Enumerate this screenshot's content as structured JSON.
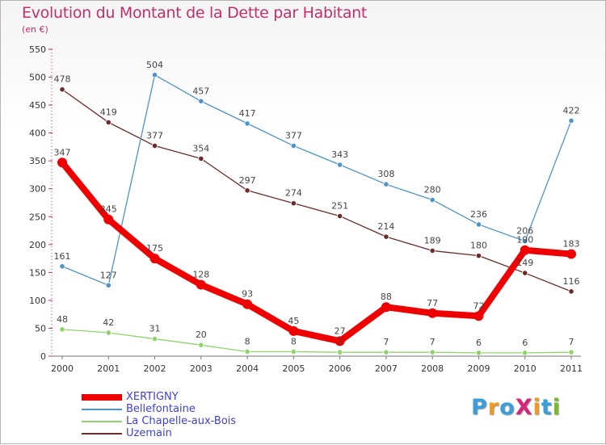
{
  "header": {
    "title": "Evolution du Montant de la Dette par Habitant",
    "unit": "(en €)"
  },
  "logo": {
    "text": "ProXiti",
    "letter_colors": [
      "#3a9fd8",
      "#f29a1f",
      "#3a9fd8",
      "#d6257b",
      "#f29a1f",
      "#3a9fd8",
      "#7ab929"
    ]
  },
  "chart_data": {
    "type": "line",
    "title": "Evolution du Montant de la Dette par Habitant",
    "ylabel": "(en €)",
    "xlabel": "",
    "ylim": [
      0,
      550
    ],
    "yticks": [
      0,
      50,
      100,
      150,
      200,
      250,
      300,
      350,
      400,
      450,
      500,
      550
    ],
    "categories": [
      "2000",
      "2001",
      "2002",
      "2003",
      "2004",
      "2005",
      "2006",
      "2007",
      "2008",
      "2009",
      "2010",
      "2011"
    ],
    "grid": false,
    "legend_position": "bottom-left",
    "series": [
      {
        "name": "XERTIGNY",
        "color": "#ee0000",
        "values": [
          347,
          245,
          175,
          128,
          93,
          45,
          27,
          88,
          77,
          72,
          190,
          183
        ]
      },
      {
        "name": "Bellefontaine",
        "color": "#4d94c8",
        "values": [
          161,
          127,
          504,
          457,
          417,
          377,
          343,
          308,
          280,
          236,
          206,
          422
        ]
      },
      {
        "name": "La Chapelle-aux-Bois",
        "color": "#8fd46a",
        "values": [
          48,
          42,
          31,
          20,
          8,
          8,
          7,
          7,
          7,
          6,
          6,
          7
        ]
      },
      {
        "name": "Uzemain",
        "color": "#6e2a2a",
        "values": [
          478,
          419,
          377,
          354,
          297,
          274,
          251,
          214,
          189,
          180,
          149,
          116
        ]
      }
    ]
  }
}
